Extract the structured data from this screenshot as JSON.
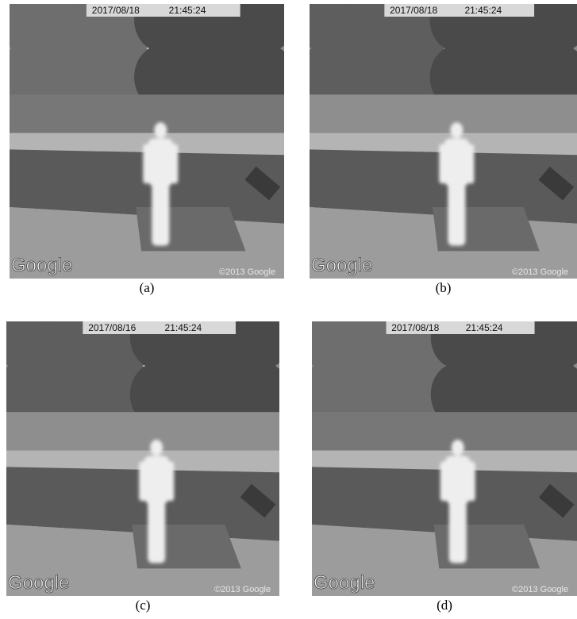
{
  "panels": [
    {
      "label": "(a)",
      "timestamp_date": "2017/08/18",
      "timestamp_time": "21:45:24",
      "watermark": "Google",
      "copyright": "©2013 Google"
    },
    {
      "label": "(b)",
      "timestamp_date": "2017/08/18",
      "timestamp_time": "21:45:24",
      "watermark": "Google",
      "copyright": "©2013 Google"
    },
    {
      "label": "(c)",
      "timestamp_date": "2017/08/16",
      "timestamp_time": "21:45:24",
      "watermark": "Google",
      "copyright": "©2013 Google"
    },
    {
      "label": "(d)",
      "timestamp_date": "2017/08/18",
      "timestamp_time": "21:45:24",
      "watermark": "Google",
      "copyright": "©2013 Google"
    }
  ]
}
